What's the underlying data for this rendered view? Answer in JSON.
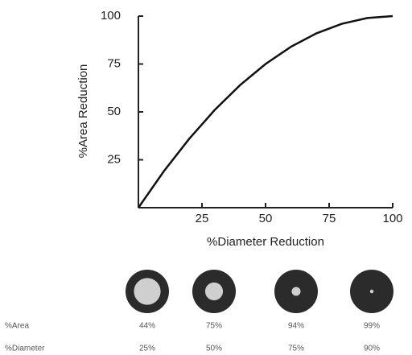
{
  "chart_data": {
    "type": "line",
    "x_label": "%Diameter Reduction",
    "y_label": "%Area Reduction",
    "x": [
      0,
      10,
      20,
      30,
      40,
      50,
      60,
      70,
      80,
      90,
      100
    ],
    "series": [
      {
        "color": "#111111",
        "values": [
          0,
          19,
          36,
          51,
          64,
          75,
          84,
          91,
          96,
          99,
          100
        ]
      }
    ],
    "xlim": [
      0,
      100
    ],
    "ylim": [
      0,
      100
    ],
    "xticks": [
      25,
      50,
      75,
      100
    ],
    "yticks": [
      25,
      50,
      75,
      100
    ]
  },
  "stenosis_table": {
    "rows": [
      {
        "name": "%Area",
        "values": [
          44,
          75,
          94,
          99
        ],
        "value_labels": [
          "44%",
          "75%",
          "94%",
          "99%"
        ]
      },
      {
        "name": "%Diameter",
        "values": [
          25,
          50,
          75,
          90
        ],
        "value_labels": [
          "25%",
          "50%",
          "75%",
          "90%"
        ]
      }
    ]
  }
}
